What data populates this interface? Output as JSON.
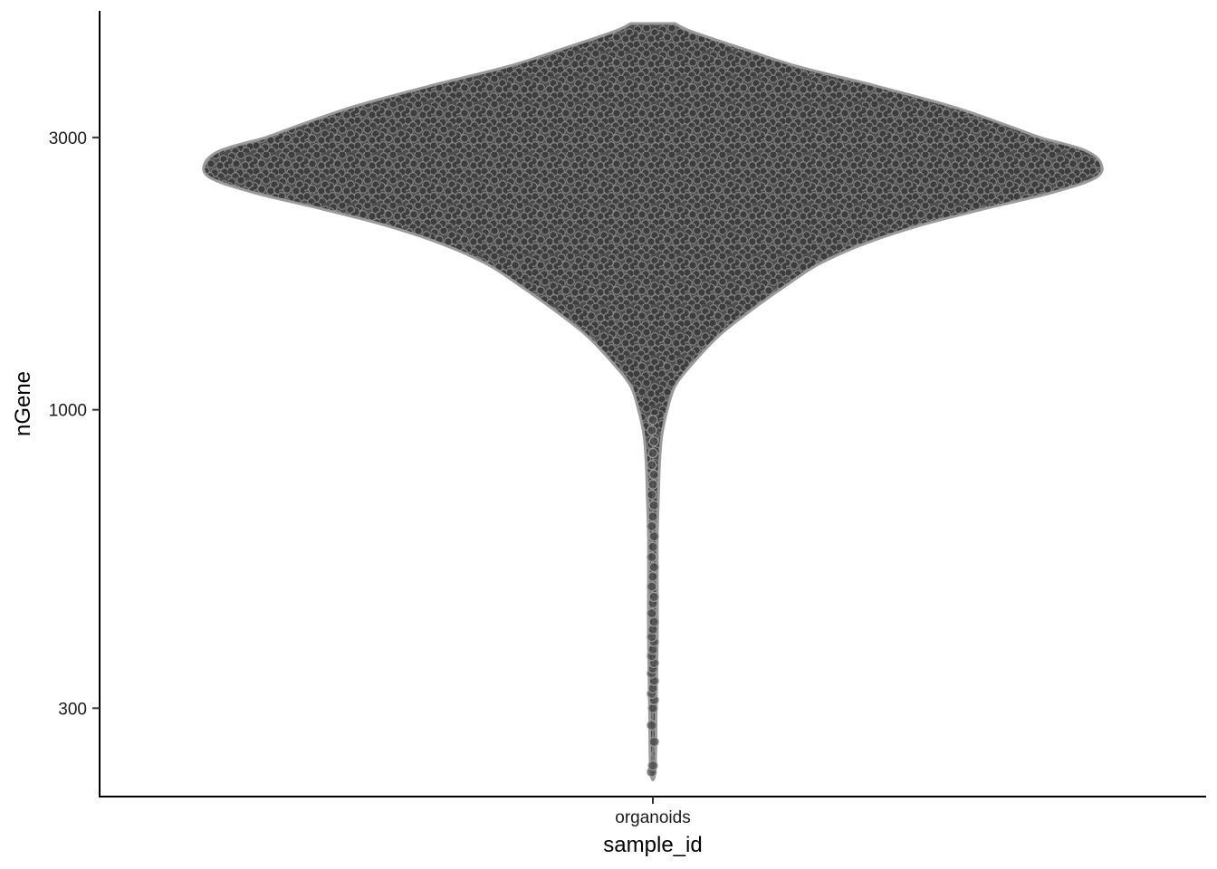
{
  "chart_data": {
    "type": "violin",
    "xlabel": "sample_id",
    "ylabel": "nGene",
    "y_scale": "log10",
    "ylim": [
      210,
      5000
    ],
    "y_ticks": [
      {
        "value": 300,
        "label": "300"
      },
      {
        "value": 1000,
        "label": "1000"
      },
      {
        "value": 3000,
        "label": "3000"
      }
    ],
    "categories": [
      "organoids"
    ],
    "grid": false,
    "legend": "none",
    "fill_color": "#4d4d4d",
    "outline_color": "#9a9a9a",
    "series": [
      {
        "category": "organoids",
        "y_min": 232,
        "y_max": 4750,
        "density_profile": [
          {
            "y": 4750,
            "half_width": 0.02
          },
          {
            "y": 4600,
            "half_width": 0.035
          },
          {
            "y": 4300,
            "half_width": 0.08
          },
          {
            "y": 4000,
            "half_width": 0.13
          },
          {
            "y": 3700,
            "half_width": 0.2
          },
          {
            "y": 3400,
            "half_width": 0.27
          },
          {
            "y": 3150,
            "half_width": 0.32
          },
          {
            "y": 3000,
            "half_width": 0.35
          },
          {
            "y": 2850,
            "half_width": 0.39
          },
          {
            "y": 2700,
            "half_width": 0.405
          },
          {
            "y": 2550,
            "half_width": 0.4
          },
          {
            "y": 2400,
            "half_width": 0.36
          },
          {
            "y": 2250,
            "half_width": 0.3
          },
          {
            "y": 2100,
            "half_width": 0.24
          },
          {
            "y": 1950,
            "half_width": 0.19
          },
          {
            "y": 1800,
            "half_width": 0.15
          },
          {
            "y": 1650,
            "half_width": 0.12
          },
          {
            "y": 1500,
            "half_width": 0.09
          },
          {
            "y": 1350,
            "half_width": 0.06
          },
          {
            "y": 1200,
            "half_width": 0.035
          },
          {
            "y": 1100,
            "half_width": 0.02
          },
          {
            "y": 1000,
            "half_width": 0.013
          },
          {
            "y": 900,
            "half_width": 0.008
          },
          {
            "y": 800,
            "half_width": 0.006
          },
          {
            "y": 700,
            "half_width": 0.005
          },
          {
            "y": 600,
            "half_width": 0.004
          },
          {
            "y": 500,
            "half_width": 0.004
          },
          {
            "y": 400,
            "half_width": 0.004
          },
          {
            "y": 300,
            "half_width": 0.003
          },
          {
            "y": 232,
            "half_width": 0.002
          }
        ],
        "tail_points": [
          232,
          238,
          262,
          280,
          300,
          310,
          318,
          325,
          335,
          345,
          352,
          360,
          370,
          380,
          392,
          400,
          412,
          425,
          440,
          458,
          470,
          490,
          510,
          530,
          552,
          575,
          600,
          625,
          650,
          680,
          710,
          740,
          770,
          800,
          840,
          880,
          920,
          960
        ]
      }
    ]
  }
}
